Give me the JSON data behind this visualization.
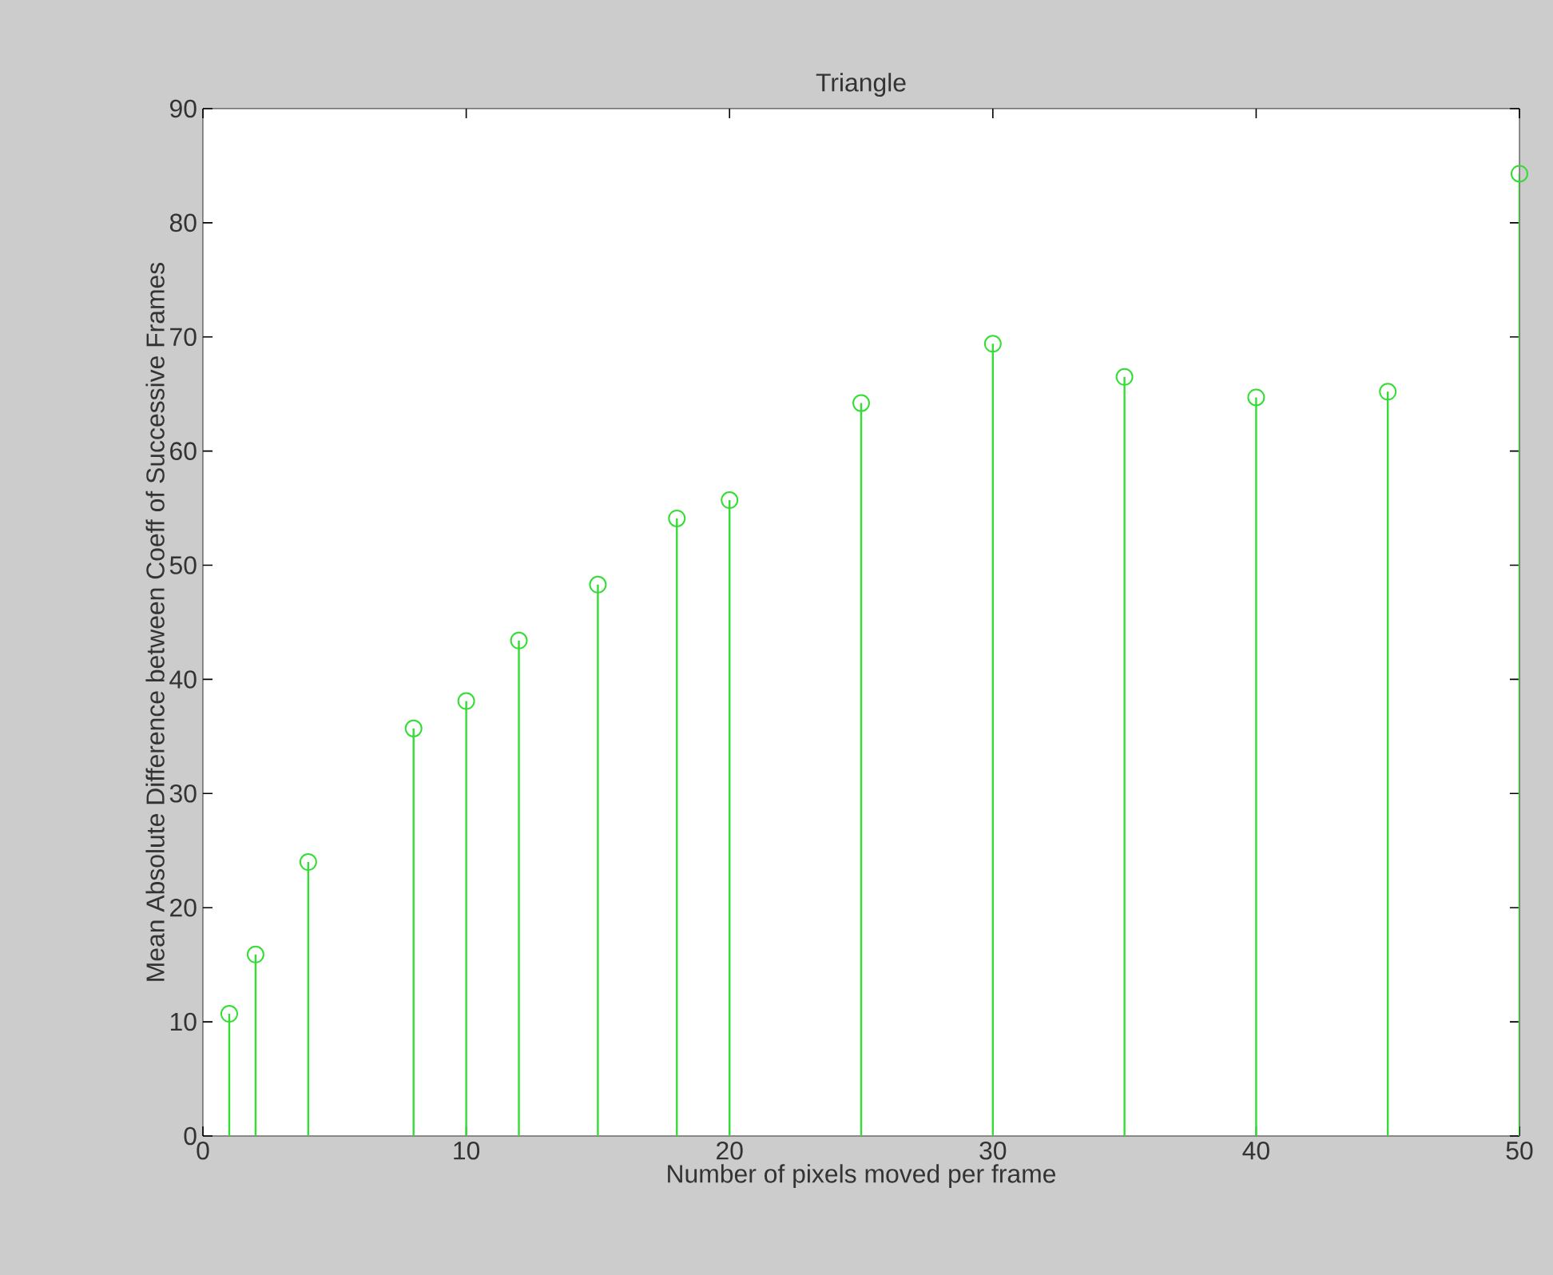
{
  "chart_data": {
    "type": "lollipop",
    "title": "Triangle",
    "xlabel": "Number of pixels moved per frame",
    "ylabel": "Mean Absolute Difference between Coeff of Successive Frames",
    "x": [
      1,
      2,
      4,
      8,
      10,
      12,
      15,
      18,
      20,
      25,
      30,
      35,
      40,
      45,
      50
    ],
    "values": [
      10.7,
      15.9,
      24.0,
      35.7,
      38.1,
      43.4,
      48.3,
      54.1,
      55.7,
      64.2,
      69.4,
      66.5,
      64.7,
      65.2,
      84.3
    ],
    "color": "#33dd33",
    "marker": "circle",
    "xlim": [
      0,
      50
    ],
    "ylim": [
      0,
      90
    ],
    "xticks": [
      0,
      10,
      20,
      30,
      40,
      50
    ],
    "yticks": [
      0,
      10,
      20,
      30,
      40,
      50,
      60,
      70,
      80,
      90
    ]
  }
}
